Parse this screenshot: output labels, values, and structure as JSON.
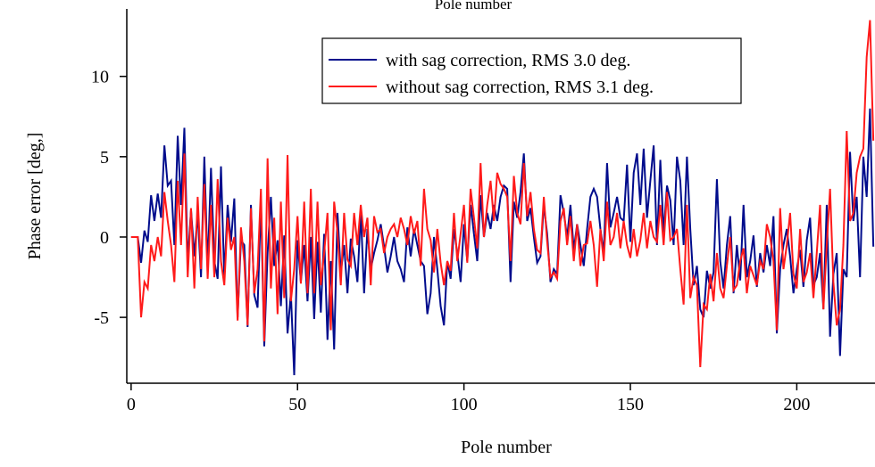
{
  "chart_data": {
    "type": "line",
    "top_label": "Pole number",
    "xlabel": "Pole number",
    "ylabel": "Phase error [deg,]",
    "xlim": [
      -1.3,
      223.5
    ],
    "xticks": [
      0,
      50,
      100,
      150,
      200
    ],
    "ylim": [
      -9.1,
      14.2
    ],
    "yticks": [
      -5,
      0,
      5,
      10
    ],
    "legend": "top-center",
    "x": [
      0,
      1,
      2,
      3,
      4,
      5,
      6,
      7,
      8,
      9,
      10,
      11,
      12,
      13,
      14,
      15,
      16,
      17,
      18,
      19,
      20,
      21,
      22,
      23,
      24,
      25,
      26,
      27,
      28,
      29,
      30,
      31,
      32,
      33,
      34,
      35,
      36,
      37,
      38,
      39,
      40,
      41,
      42,
      43,
      44,
      45,
      46,
      47,
      48,
      49,
      50,
      51,
      52,
      53,
      54,
      55,
      56,
      57,
      58,
      59,
      60,
      61,
      62,
      63,
      64,
      65,
      66,
      67,
      68,
      69,
      70,
      71,
      72,
      73,
      74,
      75,
      76,
      77,
      78,
      79,
      80,
      81,
      82,
      83,
      84,
      85,
      86,
      87,
      88,
      89,
      90,
      91,
      92,
      93,
      94,
      95,
      96,
      97,
      98,
      99,
      100,
      101,
      102,
      103,
      104,
      105,
      106,
      107,
      108,
      109,
      110,
      111,
      112,
      113,
      114,
      115,
      116,
      117,
      118,
      119,
      120,
      121,
      122,
      123,
      124,
      125,
      126,
      127,
      128,
      129,
      130,
      131,
      132,
      133,
      134,
      135,
      136,
      137,
      138,
      139,
      140,
      141,
      142,
      143,
      144,
      145,
      146,
      147,
      148,
      149,
      150,
      151,
      152,
      153,
      154,
      155,
      156,
      157,
      158,
      159,
      160,
      161,
      162,
      163,
      164,
      165,
      166,
      167,
      168,
      169,
      170,
      171,
      172,
      173,
      174,
      175,
      176,
      177,
      178,
      179,
      180,
      181,
      182,
      183,
      184,
      185,
      186,
      187,
      188,
      189,
      190,
      191,
      192,
      193,
      194,
      195,
      196,
      197,
      198,
      199,
      200,
      201,
      202,
      203,
      204,
      205,
      206,
      207,
      208,
      209,
      210,
      211,
      212,
      213,
      214,
      215,
      216,
      217,
      218,
      219,
      220,
      221,
      222,
      223
    ],
    "series": [
      {
        "name": "with sag correction, RMS 3.0 deg.",
        "color": "#000c8c",
        "values": [
          0,
          0,
          0,
          -1.6,
          0.4,
          -0.3,
          2.6,
          1.0,
          2.7,
          1.2,
          5.7,
          3.2,
          3.5,
          -0.5,
          6.3,
          2.0,
          6.8,
          -1.6,
          1.7,
          -1.2,
          1.5,
          -2.5,
          5.0,
          -2.0,
          4.3,
          -1.5,
          -2.6,
          4.4,
          -2.5,
          2.0,
          -0.3,
          2.4,
          -5.0,
          -0.2,
          -0.5,
          -5.6,
          2.0,
          -3.6,
          -4.4,
          2.2,
          -6.8,
          -1.0,
          2.5,
          -1.8,
          -0.2,
          -4.3,
          0.1,
          -6.0,
          -3.5,
          -8.6,
          -0.2,
          -2.8,
          -0.5,
          -4.0,
          0.0,
          -5.1,
          -0.3,
          -4.7,
          0.2,
          -6.4,
          -1.5,
          -7.0,
          1.5,
          -2.2,
          -0.5,
          -3.5,
          -0.1,
          -1.2,
          -2.8,
          1.6,
          -3.5,
          0.5,
          -2.0,
          -1.0,
          -0.2,
          0.8,
          -0.6,
          -2.2,
          -1.2,
          0.0,
          -1.5,
          -2.0,
          -2.8,
          0.6,
          -1.2,
          0.5,
          -0.5,
          -1.5,
          -1.8,
          -4.8,
          -3.5,
          0.0,
          -2.0,
          -4.3,
          -5.5,
          -1.5,
          -2.6,
          0.5,
          -1.0,
          -2.8,
          0.8,
          -1.5,
          2.0,
          0.2,
          -1.5,
          2.6,
          0.0,
          1.5,
          0.5,
          2.0,
          1.0,
          2.5,
          3.2,
          3.0,
          -2.8,
          2.2,
          1.2,
          2.8,
          5.2,
          1.0,
          1.8,
          0.0,
          -1.6,
          -1.2,
          2.0,
          0.2,
          -2.8,
          -2.0,
          -2.3,
          2.6,
          1.5,
          0.0,
          2.0,
          -0.8,
          0.8,
          -0.5,
          -1.8,
          0.5,
          2.5,
          3.0,
          2.5,
          0.5,
          -1.0,
          4.6,
          0.6,
          1.5,
          2.5,
          1.2,
          1.0,
          4.5,
          -0.3,
          4.0,
          5.2,
          2.0,
          5.5,
          1.2,
          3.5,
          5.7,
          -0.5,
          4.8,
          0.2,
          3.2,
          2.3,
          -0.5,
          5.0,
          3.5,
          -0.5,
          5.0,
          0.5,
          -3.0,
          -1.8,
          -4.5,
          -5.0,
          -2.1,
          -3.2,
          -2.2,
          3.6,
          -1.5,
          -3.2,
          -0.5,
          1.3,
          -3.5,
          -0.5,
          -2.7,
          2.0,
          -2.5,
          -1.5,
          0.1,
          -3.1,
          -1.0,
          -2.2,
          -0.5,
          -1.8,
          1.3,
          -6.0,
          -2.0,
          -0.5,
          0.5,
          -1.2,
          -3.5,
          -2.0,
          -0.8,
          -3.1,
          -0.2,
          1.2,
          -3.0,
          -2.5,
          -1.0,
          -4.5,
          2.0,
          -6.2,
          -2.3,
          -1.0,
          -7.4,
          -2.0,
          -2.5,
          5.3,
          1.0,
          2.5,
          -2.5,
          5.0,
          2.5,
          8.0,
          -0.6
        ]
      },
      {
        "name": "without sag correction, RMS 3.1 deg.",
        "color": "#ff1a1a",
        "values": [
          0,
          0,
          0,
          -5.0,
          -2.8,
          -3.2,
          -0.5,
          -1.5,
          0.0,
          -1.2,
          2.8,
          1.0,
          -0.5,
          -2.8,
          3.5,
          -0.5,
          5.2,
          -2.5,
          1.8,
          -3.2,
          2.5,
          -2.0,
          3.3,
          -2.6,
          2.0,
          -2.5,
          3.6,
          -1.5,
          -3.0,
          1.2,
          -0.8,
          0.0,
          -5.2,
          0.6,
          -1.5,
          -5.5,
          1.8,
          -3.5,
          -2.0,
          3.0,
          -6.5,
          4.9,
          -3.2,
          1.2,
          -4.8,
          2.2,
          -3.8,
          5.1,
          -4.0,
          -2.0,
          1.3,
          -2.9,
          2.2,
          -3.5,
          3.0,
          -3.5,
          2.2,
          -3.0,
          -1.0,
          1.5,
          -5.8,
          2.2,
          0.3,
          -3.0,
          1.5,
          -1.4,
          -1.8,
          1.5,
          -0.5,
          2.0,
          0.0,
          1.2,
          -3.0,
          1.3,
          0.3,
          0.5,
          -1.0,
          0.0,
          0.5,
          0.8,
          0.0,
          1.2,
          0.5,
          -0.5,
          1.3,
          0.2,
          1.0,
          -1.8,
          3.0,
          0.5,
          -0.2,
          -2.2,
          0.5,
          -1.6,
          -3.0,
          -1.5,
          -2.1,
          1.5,
          -1.5,
          0.2,
          2.0,
          -1.6,
          3.0,
          1.2,
          -0.7,
          4.6,
          0.0,
          2.0,
          3.5,
          1.0,
          4.0,
          3.3,
          3.0,
          2.5,
          -1.5,
          3.8,
          1.5,
          0.8,
          4.6,
          1.3,
          2.8,
          0.5,
          -0.8,
          -1.0,
          2.5,
          -0.3,
          -2.5,
          -2.2,
          -2.6,
          1.0,
          1.8,
          -0.5,
          1.3,
          -1.5,
          0.8,
          -1.8,
          -0.5,
          -0.4,
          1.0,
          -0.5,
          -3.1,
          0.5,
          -1.5,
          2.2,
          -0.5,
          0.0,
          1.5,
          -0.7,
          1.0,
          -0.5,
          -1.3,
          0.5,
          -1.2,
          -0.2,
          1.5,
          -0.7,
          1.0,
          0.0,
          -0.3,
          2.0,
          -0.5,
          2.8,
          -0.2,
          0.0,
          0.5,
          -2.0,
          -4.2,
          2.0,
          -3.8,
          -2.5,
          -3.0,
          -8.1,
          -4.2,
          -4.5,
          -2.3,
          -4.0,
          -1.0,
          -3.2,
          -3.8,
          -1.8,
          0.0,
          -3.3,
          -3.0,
          -1.5,
          -0.7,
          -3.5,
          -1.8,
          -2.4,
          -3.0,
          -1.5,
          -2.0,
          0.8,
          0.0,
          -1.5,
          -5.8,
          1.8,
          -2.0,
          -0.5,
          1.5,
          -2.3,
          -3.2,
          0.5,
          -2.8,
          -2.2,
          -1.0,
          -3.8,
          -1.0,
          2.0,
          -4.5,
          -0.5,
          3.0,
          -2.8,
          -5.5,
          -4.5,
          -0.5,
          6.6,
          1.0,
          1.5,
          4.0,
          5.0,
          5.5,
          11.2,
          13.5,
          6.0
        ]
      }
    ]
  }
}
